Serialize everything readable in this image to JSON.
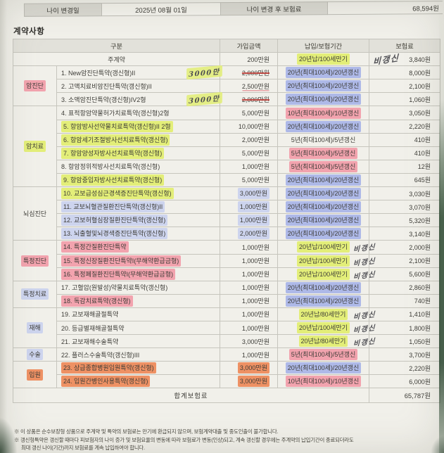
{
  "colors": {
    "hl-yellow": "#e3ee79",
    "hl-blue": "#aeb9e8",
    "hl-pink": "#f2a3ae",
    "hl-orange": "#ee9164",
    "hl-lav": "#cdd4ee",
    "pen-red": "#bd4a44",
    "ink": "#38383f"
  },
  "top": {
    "age_change_label": "나이 변경일",
    "age_change_value": "2025년 08월 01일",
    "premium_after_label": "나이 변경 후 보험료",
    "premium_after_value": "68,594원"
  },
  "section_title": "계약사항",
  "table": {
    "headers": {
      "category": "구분",
      "amount": "가입금액",
      "period": "납입/보험기간",
      "premium": "보험료"
    },
    "main_row": {
      "name": "주계약",
      "amount": "200만원",
      "period": "20년납/100세만기",
      "period_hl": "yellow",
      "handwriting": "비갱신",
      "premium": "3,840원"
    },
    "rows": [
      {
        "no": "1",
        "name": "New암진단특약(갱신형)II",
        "amount": "2,000만원",
        "amount_struck": true,
        "amount_hand": "3000만",
        "period": "20년(최대100세)/20년갱신",
        "period_hl": "blue",
        "premium": "8,000원",
        "cat": {
          "label": "암진단",
          "span": 3,
          "hl": "pink"
        }
      },
      {
        "no": "2",
        "name": "고액치료비암진단특약(갱신형)II",
        "amount": "2,500만원",
        "amount_underline": true,
        "period": "20년(최대100세)/20년갱신",
        "period_hl": "blue",
        "premium": "2,100원"
      },
      {
        "no": "3",
        "name": "소액암진단특약(갱신형)IV2형",
        "amount": "2,000만원",
        "amount_struck": true,
        "amount_hand": "3000만",
        "period": "20년(최대100세)/20년갱신",
        "period_hl": "blue",
        "premium": "1,060원"
      },
      {
        "no": "4",
        "name": "표적항암약물허가치료특약(갱신형)2형",
        "amount": "5,000만원",
        "period": "10년(최대100세)/10년갱신",
        "period_hl": "pink",
        "premium": "3,050원",
        "cat": {
          "label": "암치료",
          "span": 6,
          "hl": "yellow"
        }
      },
      {
        "no": "5",
        "name": "항암방사선약물치료특약(갱신형)II 2형",
        "name_hl": "yellow",
        "amount": "10,000만원",
        "period": "20년(최대100세)/20년갱신",
        "period_hl": "blue",
        "premium": "2,220원"
      },
      {
        "no": "6",
        "name": "항암세기조절방사선치료특약(갱신형)",
        "name_hl": "yellow",
        "amount": "2,000만원",
        "period": "5년(최대100세)/5년갱신",
        "premium": "410원"
      },
      {
        "no": "7",
        "name": "항암양성자방사선치료특약(갱신형)",
        "name_hl": "yellow",
        "amount": "5,000만원",
        "period": "5년(최대100세)/5년갱신",
        "period_hl": "pink",
        "premium": "410원"
      },
      {
        "no": "8",
        "name": "항암정위적방사선치료특약(갱신형)",
        "amount": "1,000만원",
        "period": "5년(최대100세)/5년갱신",
        "period_hl": "pink",
        "premium": "12원"
      },
      {
        "no": "9",
        "name": "항암중입자방사선치료특약(갱신형)",
        "name_hl": "yellow",
        "amount": "5,000만원",
        "period": "20년(최대100세)/20년갱신",
        "period_hl": "blue",
        "premium": "645원"
      },
      {
        "no": "10",
        "name": "교보급성심근경색증진단특약(갱신형)",
        "name_hl": "yellow",
        "amount": "3,000만원",
        "amount_hl": "lav",
        "period": "20년(최대100세)/20년갱신",
        "period_hl": "blue",
        "premium": "3,030원",
        "cat": {
          "label": "뇌심진단",
          "span": 4
        }
      },
      {
        "no": "11",
        "name": "교보뇌혈관질환진단특약(갱신형)II",
        "name_hl": "lav",
        "amount": "1,000만원",
        "amount_hl": "lav",
        "period": "20년(최대100세)/20년갱신",
        "period_hl": "blue",
        "premium": "3,070원"
      },
      {
        "no": "12",
        "name": "교보허혈심장질환진단특약(갱신형)",
        "name_hl": "lav",
        "amount": "1,000만원",
        "amount_hl": "lav",
        "period": "20년(최대100세)/20년갱신",
        "period_hl": "blue",
        "premium": "5,320원"
      },
      {
        "no": "13",
        "name": "뇌출혈및뇌경색증진단특약(갱신형)",
        "name_hl": "lav",
        "amount": "2,000만원",
        "amount_hl": "lav",
        "period": "20년(최대100세)/20년갱신",
        "period_hl": "blue",
        "premium": "3,140원"
      },
      {
        "no": "14",
        "name": "특정간질환진단특약",
        "name_hl": "pink",
        "amount": "1,000만원",
        "period": "20년납/100세만기",
        "period_hl": "yellow",
        "hand": "비갱신",
        "premium": "2,000원",
        "cat": {
          "label": "특정진단",
          "span": 3,
          "hl": "pink"
        }
      },
      {
        "no": "15",
        "name": "특정신장질환진단특약I(무해약환급금형)",
        "name_hl": "pink",
        "amount": "1,000만원",
        "period": "20년납/100세만기",
        "period_hl": "yellow",
        "hand": "비갱신",
        "premium": "2,100원"
      },
      {
        "no": "16",
        "name": "특정폐질환진단특약I(무해약환급금형)",
        "name_hl": "pink",
        "amount": "1,000만원",
        "period": "20년납/100세만기",
        "period_hl": "yellow",
        "hand": "비갱신",
        "premium": "5,600원"
      },
      {
        "no": "17",
        "name": "고혈압(원발성)약물치료특약(갱신형)",
        "amount": "1,000만원",
        "period": "20년(최대100세)/20년갱신",
        "period_hl": "blue",
        "premium": "2,860원",
        "cat": {
          "label": "특정치료",
          "span": 2,
          "hl": "lav"
        }
      },
      {
        "no": "18",
        "name": "독감치료특약(갱신형)",
        "name_hl": "pink",
        "amount": "1,000만원",
        "period": "20년(최대100세)/20년갱신",
        "period_hl": "blue",
        "premium": "740원"
      },
      {
        "no": "19",
        "name": "교보재해골절특약",
        "amount": "1,000만원",
        "period": "20년납/80세만기",
        "period_hl": "yellow",
        "hand": "비갱신",
        "premium": "1,410원",
        "cat": {
          "label": "재해",
          "span": 3,
          "hl": "lav"
        }
      },
      {
        "no": "20",
        "name": "등급별재해골절특약",
        "amount": "1,000만원",
        "period": "20년납/100세만기",
        "period_hl": "yellow",
        "hand": "비갱신",
        "premium": "1,800원"
      },
      {
        "no": "21",
        "name": "교보재해수술특약",
        "amount": "3,000만원",
        "period": "20년납/80세만기",
        "period_hl": "yellow",
        "hand": "비갱신",
        "premium": "1,050원"
      },
      {
        "no": "22",
        "name": "플러스수술특약(갱신형)III",
        "amount": "1,000만원",
        "period": "5년(최대100세)/5년갱신",
        "period_hl": "pink",
        "premium": "3,700원",
        "cat": {
          "label": "수술",
          "span": 1,
          "hl": "lav"
        }
      },
      {
        "no": "23",
        "name": "상급종합병원입원특약(갱신형)",
        "name_hl": "orange",
        "amount": "3,000만원",
        "amount_hl": "orange",
        "period": "20년(최대100세)/20년갱신",
        "period_hl": "blue",
        "premium": "2,220원",
        "cat": {
          "label": "입원",
          "span": 2,
          "hl": "orange"
        }
      },
      {
        "no": "24",
        "name": "입원간병인사용특약(갱신형)",
        "name_hl": "orange",
        "amount": "3,000만원",
        "amount_hl": "orange",
        "period": "10년(최대100세)/10년갱신",
        "period_hl": "pink",
        "premium": "6,000원"
      }
    ],
    "total_label": "합계보험료",
    "total_value": "65,787원"
  },
  "footnotes": [
    "※ 이 상품은 순수보장형 상품으로 주계약 및 특약의 보험료는 만기에 환급되지 않으며, 보험계약대출 및 중도인출이 불가합니다.",
    "※ 갱신형특약은 갱신할 때마다 피보험자의 나이 증가 및 보험요율의 변동에 따라 보험료가 변동(인상)되고, 계속 갱신할 경우에는 주계약의 납입기간이 종료되더라도",
    "최대 갱신 나이(기간)까지 보험료를 계속 납입하여야 합니다."
  ]
}
